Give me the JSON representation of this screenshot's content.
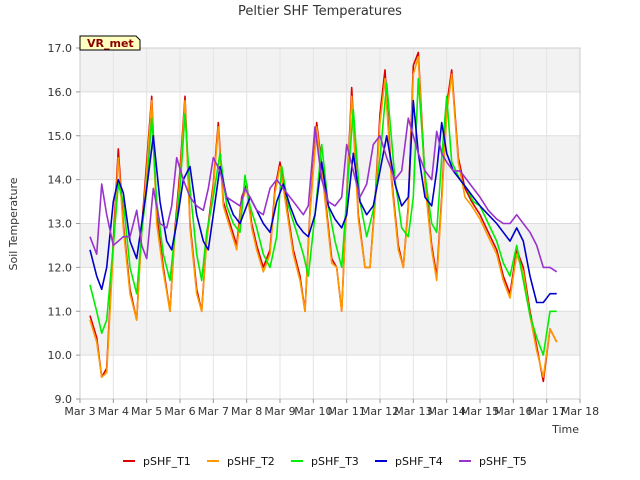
{
  "chart_data": {
    "type": "line",
    "title": "Peltier SHF Temperatures",
    "xlabel": "Time",
    "ylabel": "Soil Temperature",
    "xlim": [
      3,
      18
    ],
    "ylim": [
      9.0,
      17.0
    ],
    "x_tick_values": [
      3,
      4,
      5,
      6,
      7,
      8,
      9,
      10,
      11,
      12,
      13,
      14,
      15,
      16,
      17,
      18
    ],
    "x_tick_labels": [
      "Mar 3",
      "Mar 4",
      "Mar 5",
      "Mar 6",
      "Mar 7",
      "Mar 8",
      "Mar 9",
      "Mar 10",
      "Mar 11",
      "Mar 12",
      "Mar 13",
      "Mar 14",
      "Mar 15",
      "Mar 16",
      "Mar 17",
      "Mar 18"
    ],
    "y_ticks": [
      9.0,
      10.0,
      11.0,
      12.0,
      13.0,
      14.0,
      15.0,
      16.0,
      17.0
    ],
    "grid": true,
    "banded_background": true,
    "legend_position": "bottom",
    "annotation": "VR_met",
    "series": [
      {
        "name": "pSHF_T1",
        "color": "#dd0000",
        "x": [
          3.3,
          3.5,
          3.65,
          3.8,
          4.0,
          4.15,
          4.3,
          4.5,
          4.7,
          4.85,
          5.0,
          5.15,
          5.3,
          5.5,
          5.7,
          5.85,
          6.0,
          6.15,
          6.3,
          6.5,
          6.65,
          6.8,
          7.0,
          7.15,
          7.3,
          7.5,
          7.7,
          7.85,
          8.0,
          8.15,
          8.3,
          8.5,
          8.7,
          8.85,
          9.0,
          9.2,
          9.4,
          9.6,
          9.75,
          9.9,
          10.1,
          10.3,
          10.55,
          10.7,
          10.85,
          11.0,
          11.15,
          11.35,
          11.55,
          11.7,
          11.85,
          12.0,
          12.15,
          12.35,
          12.55,
          12.7,
          12.85,
          13.0,
          13.15,
          13.35,
          13.55,
          13.7,
          13.85,
          14.0,
          14.15,
          14.35,
          14.55,
          14.75,
          15.0,
          15.25,
          15.5,
          15.7,
          15.9,
          16.1,
          16.3,
          16.5,
          16.7,
          16.9,
          17.1,
          17.3
        ],
        "y": [
          10.9,
          10.4,
          9.5,
          9.7,
          12.6,
          14.7,
          13.0,
          11.5,
          10.8,
          12.9,
          14.4,
          15.9,
          13.2,
          12.0,
          11.0,
          12.9,
          14.2,
          15.9,
          13.0,
          11.5,
          11.0,
          12.7,
          13.9,
          15.3,
          13.5,
          13.0,
          12.5,
          13.6,
          13.9,
          13.0,
          12.5,
          12.0,
          12.4,
          13.8,
          14.4,
          13.4,
          12.4,
          11.8,
          11.0,
          13.3,
          15.3,
          14.0,
          12.2,
          12.0,
          11.0,
          13.6,
          16.1,
          13.2,
          12.0,
          12.0,
          13.5,
          15.5,
          16.5,
          14.0,
          12.5,
          12.0,
          13.4,
          16.6,
          16.9,
          14.0,
          12.5,
          11.8,
          13.6,
          15.7,
          16.5,
          14.5,
          13.8,
          13.5,
          13.2,
          12.8,
          12.4,
          11.8,
          11.4,
          12.4,
          12.0,
          11.0,
          10.2,
          9.4,
          10.6,
          10.3
        ]
      },
      {
        "name": "pSHF_T2",
        "color": "#ff9900",
        "x": [
          3.3,
          3.5,
          3.65,
          3.8,
          4.0,
          4.15,
          4.3,
          4.5,
          4.7,
          4.85,
          5.0,
          5.15,
          5.3,
          5.5,
          5.7,
          5.85,
          6.0,
          6.15,
          6.3,
          6.5,
          6.65,
          6.8,
          7.0,
          7.15,
          7.3,
          7.5,
          7.7,
          7.85,
          8.0,
          8.15,
          8.3,
          8.5,
          8.7,
          8.85,
          9.0,
          9.2,
          9.4,
          9.6,
          9.75,
          9.9,
          10.1,
          10.3,
          10.55,
          10.7,
          10.85,
          11.0,
          11.15,
          11.35,
          11.55,
          11.7,
          11.85,
          12.0,
          12.15,
          12.35,
          12.55,
          12.7,
          12.85,
          13.0,
          13.15,
          13.35,
          13.55,
          13.7,
          13.85,
          14.0,
          14.15,
          14.35,
          14.55,
          14.75,
          15.0,
          15.25,
          15.5,
          15.7,
          15.9,
          16.1,
          16.3,
          16.5,
          16.7,
          16.9,
          17.1,
          17.3
        ],
        "y": [
          10.8,
          10.3,
          9.5,
          9.6,
          12.4,
          14.5,
          12.9,
          11.4,
          10.8,
          12.8,
          14.2,
          15.8,
          13.0,
          11.9,
          11.0,
          12.8,
          14.0,
          15.8,
          12.9,
          11.4,
          11.0,
          12.6,
          13.8,
          15.2,
          13.4,
          12.9,
          12.4,
          13.5,
          13.8,
          12.9,
          12.4,
          11.9,
          12.3,
          13.7,
          14.3,
          13.3,
          12.3,
          11.7,
          11.0,
          13.2,
          15.2,
          13.9,
          12.1,
          12.0,
          11.0,
          13.5,
          15.9,
          13.1,
          12.0,
          12.0,
          13.4,
          15.3,
          16.3,
          13.9,
          12.4,
          12.0,
          13.3,
          16.4,
          16.8,
          13.9,
          12.4,
          11.7,
          13.5,
          15.5,
          16.4,
          14.4,
          13.6,
          13.4,
          13.1,
          12.7,
          12.3,
          11.7,
          11.3,
          12.3,
          11.9,
          10.9,
          10.1,
          9.5,
          10.6,
          10.3
        ]
      },
      {
        "name": "pSHF_T3",
        "color": "#00ee00",
        "x": [
          3.3,
          3.5,
          3.65,
          3.8,
          4.0,
          4.15,
          4.3,
          4.5,
          4.7,
          4.85,
          5.0,
          5.15,
          5.3,
          5.5,
          5.7,
          5.85,
          6.0,
          6.15,
          6.3,
          6.5,
          6.65,
          6.8,
          7.0,
          7.2,
          7.4,
          7.6,
          7.8,
          7.95,
          8.1,
          8.3,
          8.5,
          8.7,
          8.9,
          9.05,
          9.25,
          9.5,
          9.7,
          9.85,
          10.05,
          10.25,
          10.45,
          10.65,
          10.85,
          11.0,
          11.2,
          11.4,
          11.6,
          11.8,
          12.0,
          12.2,
          12.45,
          12.65,
          12.85,
          13.0,
          13.15,
          13.35,
          13.55,
          13.7,
          13.85,
          14.0,
          14.15,
          14.4,
          14.6,
          14.8,
          15.0,
          15.25,
          15.5,
          15.7,
          15.9,
          16.1,
          16.3,
          16.5,
          16.7,
          16.9,
          17.1,
          17.3
        ],
        "y": [
          11.6,
          11.0,
          10.5,
          10.8,
          12.5,
          13.9,
          13.5,
          12.0,
          11.4,
          12.8,
          13.8,
          15.4,
          13.5,
          12.3,
          11.7,
          12.8,
          13.8,
          15.5,
          13.8,
          12.3,
          11.7,
          12.8,
          13.6,
          14.6,
          13.4,
          13.0,
          12.8,
          14.1,
          13.4,
          12.9,
          12.3,
          12.0,
          12.7,
          14.3,
          13.4,
          12.8,
          12.3,
          11.8,
          13.2,
          14.8,
          13.4,
          12.6,
          12.0,
          13.6,
          15.6,
          13.5,
          12.7,
          13.3,
          14.5,
          16.2,
          14.0,
          12.9,
          12.7,
          13.6,
          16.3,
          14.1,
          13.0,
          12.8,
          14.5,
          15.9,
          14.4,
          14.0,
          13.8,
          13.5,
          13.4,
          13.0,
          12.6,
          12.1,
          11.8,
          12.5,
          11.7,
          10.9,
          10.4,
          10.0,
          11.0,
          11.0
        ]
      },
      {
        "name": "pSHF_T4",
        "color": "#0000cc",
        "x": [
          3.3,
          3.5,
          3.65,
          3.8,
          4.0,
          4.15,
          4.3,
          4.5,
          4.7,
          4.85,
          5.0,
          5.2,
          5.4,
          5.6,
          5.75,
          5.9,
          6.1,
          6.3,
          6.5,
          6.7,
          6.85,
          7.0,
          7.2,
          7.4,
          7.6,
          7.8,
          7.95,
          8.1,
          8.3,
          8.5,
          8.7,
          8.9,
          9.1,
          9.3,
          9.5,
          9.7,
          9.85,
          10.05,
          10.25,
          10.45,
          10.65,
          10.85,
          11.0,
          11.2,
          11.4,
          11.6,
          11.8,
          12.0,
          12.2,
          12.45,
          12.65,
          12.85,
          13.0,
          13.15,
          13.35,
          13.55,
          13.7,
          13.85,
          14.0,
          14.2,
          14.4,
          14.6,
          14.8,
          15.0,
          15.25,
          15.5,
          15.7,
          15.9,
          16.1,
          16.3,
          16.5,
          16.7,
          16.9,
          17.1,
          17.3
        ],
        "y": [
          12.4,
          11.8,
          11.5,
          12.0,
          13.5,
          14.0,
          13.7,
          12.6,
          12.2,
          13.0,
          13.8,
          15.0,
          13.5,
          12.6,
          12.4,
          13.0,
          14.0,
          14.3,
          13.2,
          12.6,
          12.4,
          13.2,
          14.3,
          13.6,
          13.2,
          13.0,
          13.3,
          13.6,
          13.3,
          13.0,
          12.8,
          13.5,
          13.9,
          13.4,
          13.0,
          12.8,
          12.7,
          13.2,
          14.4,
          13.4,
          13.1,
          12.9,
          13.2,
          14.6,
          13.5,
          13.2,
          13.4,
          14.2,
          15.0,
          13.9,
          13.4,
          13.6,
          15.8,
          14.6,
          13.6,
          13.4,
          14.2,
          15.3,
          14.6,
          14.2,
          14.0,
          13.8,
          13.6,
          13.4,
          13.2,
          13.0,
          12.8,
          12.6,
          12.9,
          12.6,
          11.8,
          11.2,
          11.2,
          11.4,
          11.4
        ]
      },
      {
        "name": "pSHF_T5",
        "color": "#9933cc",
        "x": [
          3.3,
          3.5,
          3.65,
          3.8,
          4.0,
          4.15,
          4.3,
          4.5,
          4.7,
          4.85,
          5.0,
          5.2,
          5.4,
          5.6,
          5.75,
          5.9,
          6.1,
          6.3,
          6.5,
          6.7,
          6.85,
          7.0,
          7.2,
          7.4,
          7.6,
          7.8,
          7.95,
          8.1,
          8.3,
          8.5,
          8.7,
          8.9,
          9.1,
          9.3,
          9.5,
          9.7,
          9.85,
          10.05,
          10.25,
          10.45,
          10.65,
          10.85,
          11.0,
          11.2,
          11.4,
          11.6,
          11.8,
          12.0,
          12.2,
          12.45,
          12.65,
          12.85,
          13.0,
          13.15,
          13.35,
          13.55,
          13.7,
          13.85,
          14.0,
          14.2,
          14.4,
          14.6,
          14.8,
          15.0,
          15.25,
          15.5,
          15.7,
          15.9,
          16.1,
          16.3,
          16.5,
          16.7,
          16.9,
          17.1,
          17.3
        ],
        "y": [
          12.7,
          12.3,
          13.9,
          13.2,
          12.5,
          12.6,
          12.7,
          12.7,
          13.3,
          12.5,
          12.2,
          13.8,
          13.0,
          12.9,
          13.4,
          14.5,
          14.0,
          13.6,
          13.4,
          13.3,
          13.8,
          14.5,
          14.2,
          13.6,
          13.5,
          13.4,
          13.8,
          13.6,
          13.3,
          13.2,
          13.8,
          14.0,
          13.8,
          13.6,
          13.4,
          13.2,
          13.4,
          15.2,
          14.0,
          13.5,
          13.4,
          13.6,
          14.8,
          14.2,
          13.6,
          13.9,
          14.8,
          15.0,
          14.5,
          14.0,
          14.2,
          15.4,
          15.0,
          14.6,
          14.2,
          14.0,
          15.1,
          14.6,
          14.4,
          14.2,
          14.2,
          14.0,
          13.8,
          13.6,
          13.3,
          13.1,
          13.0,
          13.0,
          13.2,
          13.0,
          12.8,
          12.5,
          12.0,
          12.0,
          11.9
        ]
      }
    ]
  }
}
